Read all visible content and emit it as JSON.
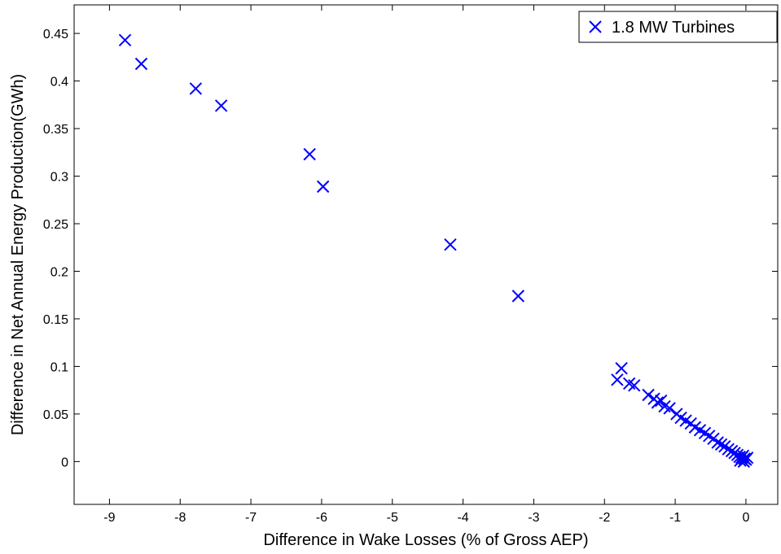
{
  "chart_data": {
    "type": "scatter",
    "xlabel": "Difference in Wake Losses (% of Gross AEP)",
    "ylabel": "Difference in Net Annual Energy Production(GWh)",
    "xlim": [
      -9.5,
      0.45
    ],
    "ylim": [
      -0.045,
      0.48
    ],
    "xticks": [
      -9,
      -8,
      -7,
      -6,
      -5,
      -4,
      -3,
      -2,
      -1,
      0
    ],
    "yticks": [
      0,
      0.05,
      0.1,
      0.15,
      0.2,
      0.25,
      0.3,
      0.35,
      0.4,
      0.45
    ],
    "xtick_labels": [
      "-9",
      "-8",
      "-7",
      "-6",
      "-5",
      "-4",
      "-3",
      "-2",
      "-1",
      "0"
    ],
    "ytick_labels": [
      "0",
      "0.05",
      "0.1",
      "0.15",
      "0.2",
      "0.25",
      "0.3",
      "0.35",
      "0.4",
      "0.45"
    ],
    "grid": false,
    "legend_position": "top-right",
    "marker": "x",
    "series": [
      {
        "name": "1.8 MW Turbines",
        "color": "#0000ff",
        "points": [
          [
            -8.78,
            0.443
          ],
          [
            -8.55,
            0.418
          ],
          [
            -7.78,
            0.392
          ],
          [
            -7.42,
            0.374
          ],
          [
            -6.17,
            0.323
          ],
          [
            -5.98,
            0.289
          ],
          [
            -4.18,
            0.228
          ],
          [
            -3.22,
            0.174
          ],
          [
            -1.82,
            0.086
          ],
          [
            -1.76,
            0.098
          ],
          [
            -1.65,
            0.082
          ],
          [
            -1.58,
            0.08
          ],
          [
            -1.38,
            0.07
          ],
          [
            -1.3,
            0.066
          ],
          [
            -1.25,
            0.062
          ],
          [
            -1.2,
            0.064
          ],
          [
            -1.15,
            0.058
          ],
          [
            -1.08,
            0.056
          ],
          [
            -0.98,
            0.05
          ],
          [
            -0.92,
            0.046
          ],
          [
            -0.85,
            0.043
          ],
          [
            -0.78,
            0.04
          ],
          [
            -0.72,
            0.036
          ],
          [
            -0.65,
            0.033
          ],
          [
            -0.58,
            0.03
          ],
          [
            -0.52,
            0.027
          ],
          [
            -0.46,
            0.024
          ],
          [
            -0.4,
            0.02
          ],
          [
            -0.35,
            0.018
          ],
          [
            -0.3,
            0.016
          ],
          [
            -0.25,
            0.013
          ],
          [
            -0.2,
            0.011
          ],
          [
            -0.16,
            0.009
          ],
          [
            -0.12,
            0.007
          ],
          [
            -0.09,
            0.005
          ],
          [
            -0.06,
            0.004
          ],
          [
            -0.04,
            0.006
          ],
          [
            -0.02,
            0.003
          ],
          [
            0.0,
            0.002
          ],
          [
            0.02,
            0.004
          ],
          [
            -0.08,
            0.001
          ],
          [
            -0.03,
            0.0
          ]
        ]
      }
    ]
  }
}
